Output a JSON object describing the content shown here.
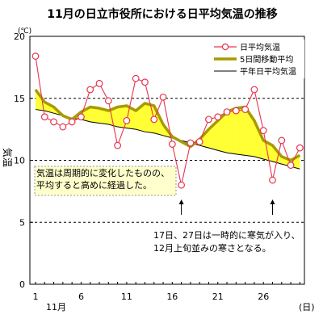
{
  "chart_data": {
    "type": "line",
    "title": "11月の日立市役所における日平均気温の推移",
    "xlabel": "",
    "ylabel": "気温",
    "y_unit": "(℃)",
    "x_unit": "(日)",
    "month_label": "11月",
    "xlim": [
      1,
      30
    ],
    "ylim": [
      0,
      20
    ],
    "x_ticks": [
      1,
      6,
      11,
      16,
      21,
      26
    ],
    "y_ticks": [
      0,
      5,
      10,
      15,
      20
    ],
    "grid": "dashed horizontal at 5, 10, 15",
    "legend_position": "top-right",
    "x": [
      1,
      2,
      3,
      4,
      5,
      6,
      7,
      8,
      9,
      10,
      11,
      12,
      13,
      14,
      15,
      16,
      17,
      18,
      19,
      20,
      21,
      22,
      23,
      24,
      25,
      26,
      27,
      28,
      29,
      30
    ],
    "series": [
      {
        "name": "日平均気温",
        "color": "#e8344e",
        "marker": "open-circle",
        "values": [
          18.4,
          13.5,
          13.1,
          12.7,
          13.1,
          13.5,
          15.7,
          16.2,
          14.8,
          11.2,
          13.2,
          16.6,
          16.3,
          13.3,
          15.1,
          11.3,
          8.0,
          11.4,
          11.5,
          13.3,
          13.5,
          13.9,
          14.0,
          14.1,
          15.7,
          12.4,
          8.4,
          11.6,
          9.6,
          11.0
        ]
      },
      {
        "name": "5日間移動平均",
        "color": "#a79b00",
        "values": [
          15.7,
          14.7,
          14.3,
          13.6,
          13.3,
          13.9,
          14.3,
          14.2,
          14.0,
          14.3,
          14.4,
          14.0,
          14.6,
          14.4,
          12.9,
          11.9,
          11.5,
          11.1,
          11.7,
          12.5,
          13.2,
          13.9,
          14.2,
          14.3,
          13.2,
          11.6,
          11.2,
          10.3,
          10.0,
          10.4
        ]
      },
      {
        "name": "平年日平均気温",
        "color": "#000000",
        "values": [
          14.1,
          14.0,
          13.8,
          13.6,
          13.4,
          13.3,
          13.1,
          13.0,
          12.9,
          12.7,
          12.6,
          12.5,
          12.3,
          12.2,
          12.0,
          11.8,
          11.6,
          11.4,
          11.2,
          11.0,
          10.8,
          10.6,
          10.5,
          10.4,
          10.3,
          10.1,
          9.9,
          9.7,
          9.5,
          9.3
        ]
      }
    ],
    "fill_above_color": "#ffff33",
    "fill_below_color": "#33bbdd",
    "annotations": {
      "box_note": "気温は周期的に変化したものの、平均すると高めに経過した。",
      "note2_line1": "17日、27日は一時的に寒気が入り、",
      "note2_line2": "12月上旬並みの寒さとなる。",
      "arrows_at_x": [
        17,
        27
      ]
    }
  }
}
